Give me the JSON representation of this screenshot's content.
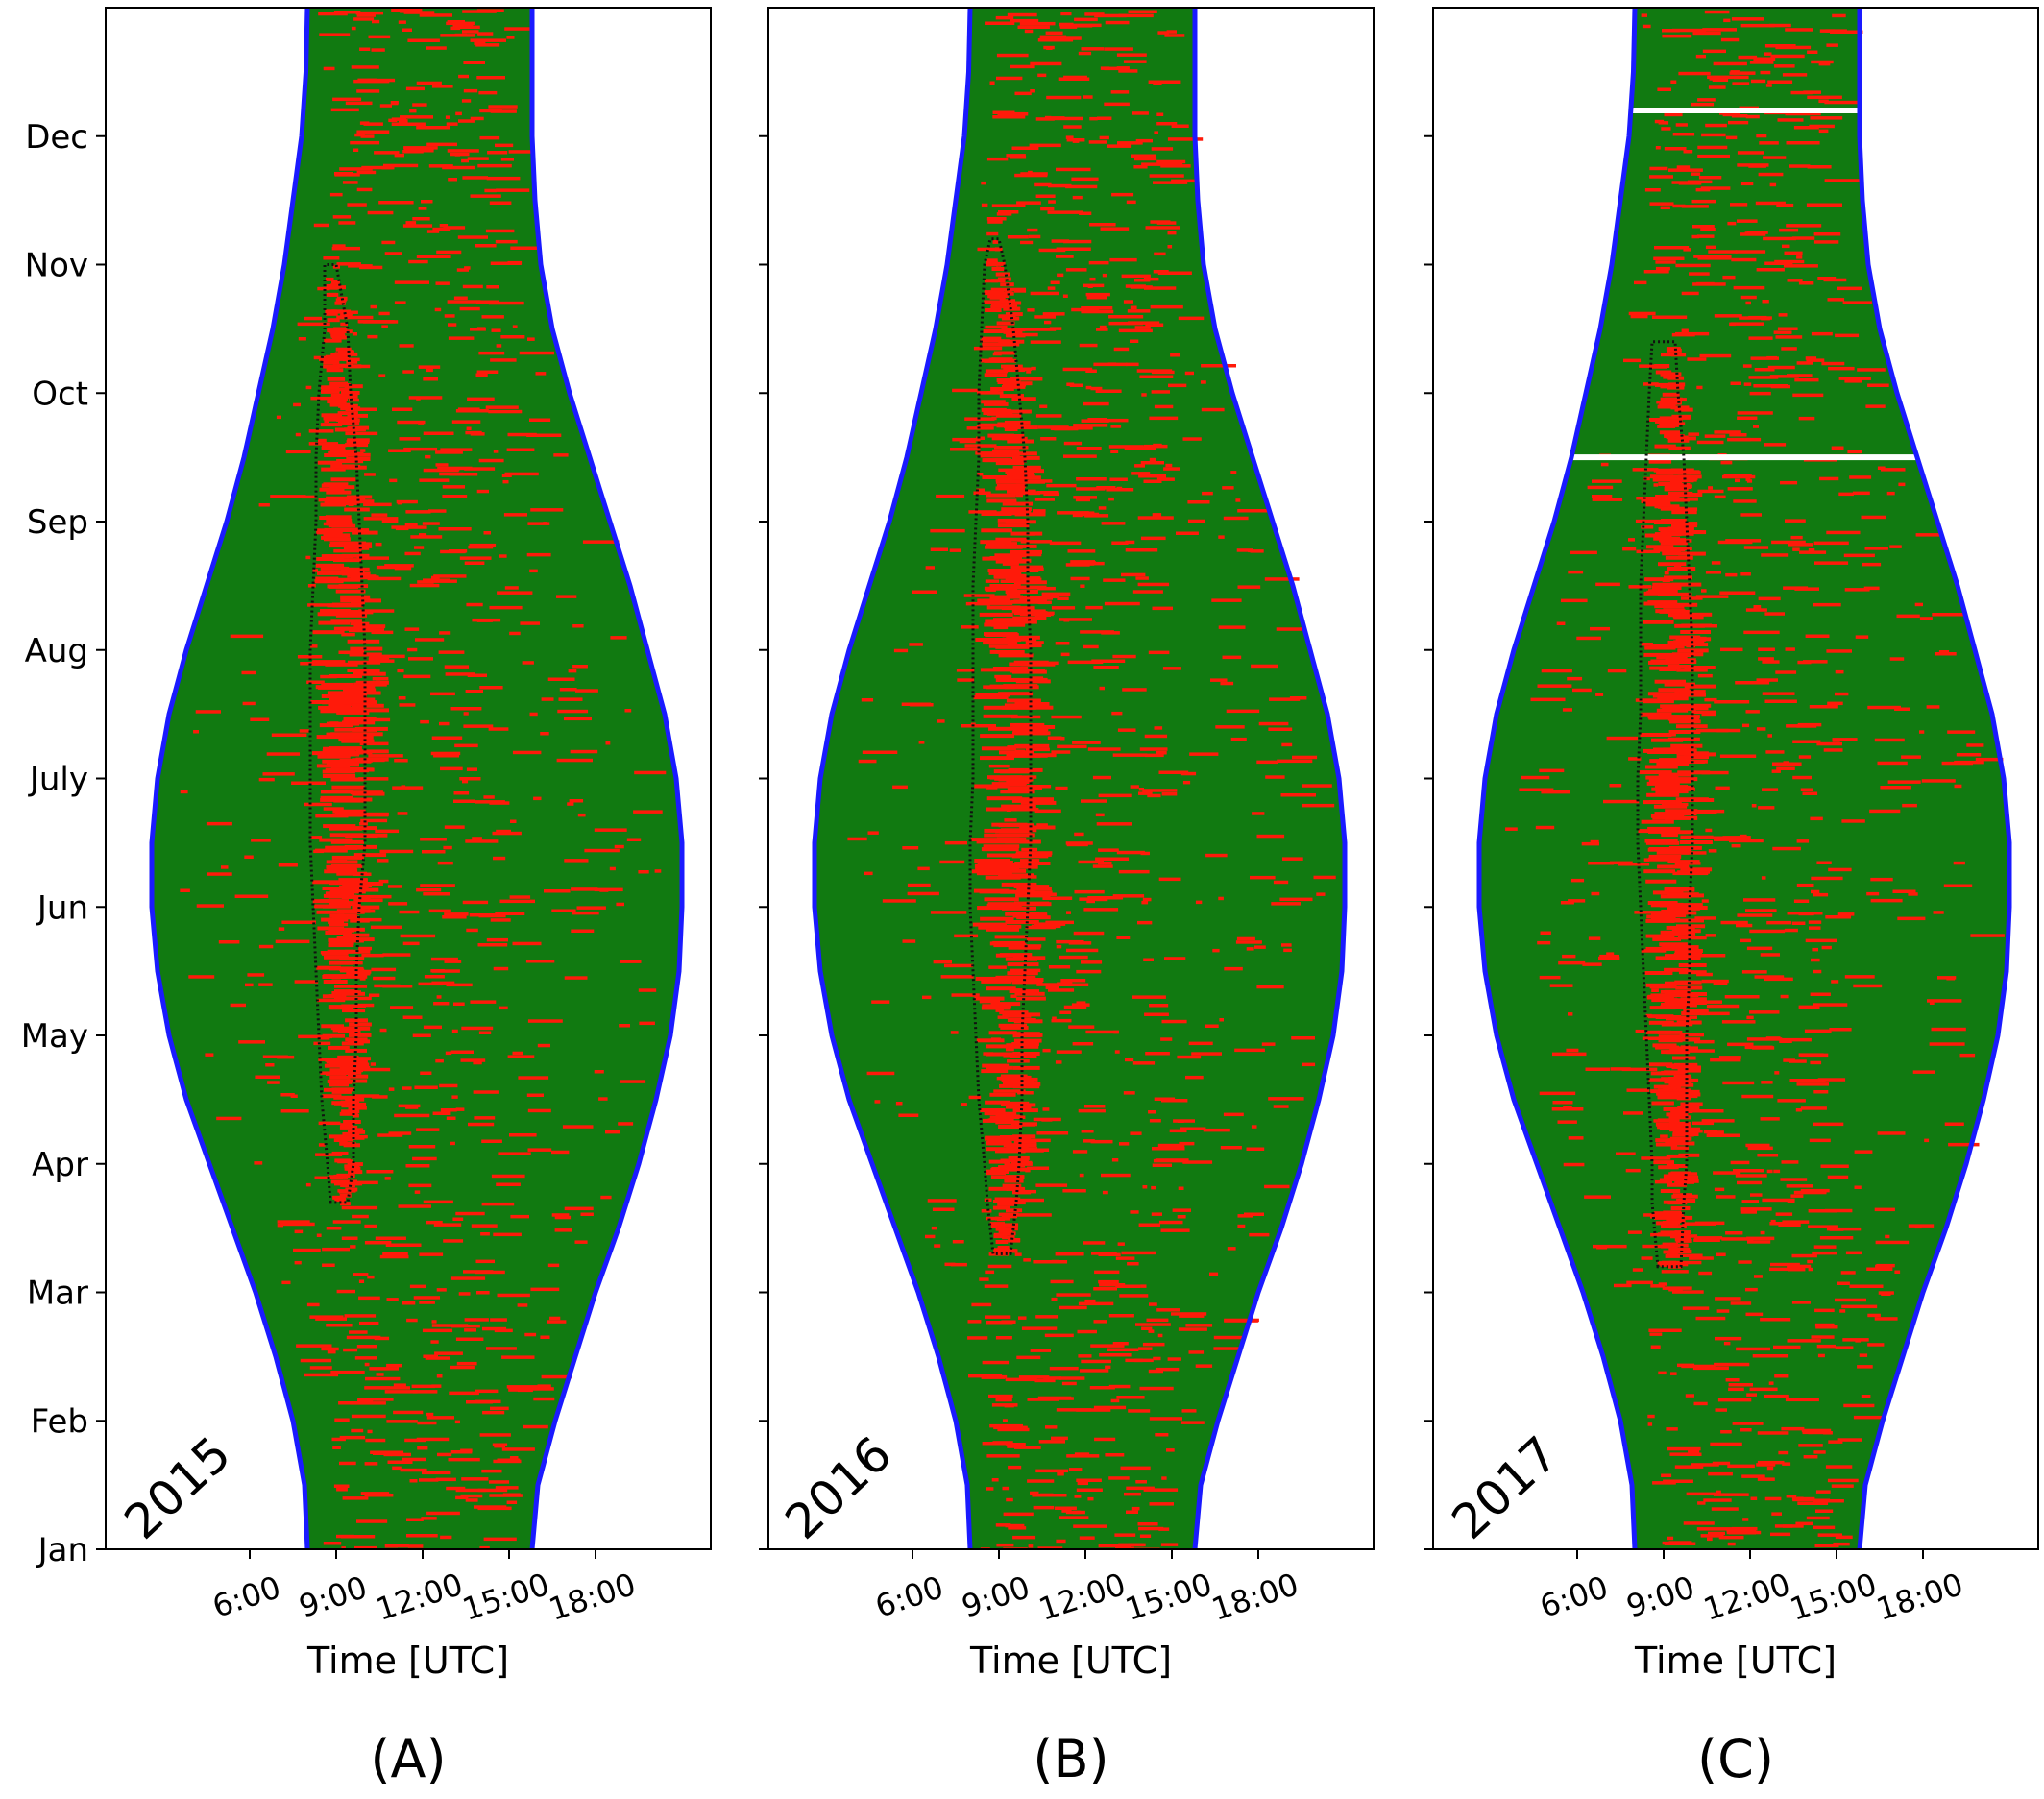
{
  "colors": {
    "sky_fill": "#117a11",
    "red_marks": "#ff1a0a",
    "daylight_curve": "#1a1aff",
    "contour": "#111111",
    "frame": "#000000",
    "background": "#ffffff"
  },
  "chart_data": [
    {
      "type": "scatter",
      "panel_label": "(A)",
      "year_label": "2015",
      "xlabel": "Time [UTC]",
      "ylabel": "",
      "x_ticks": [
        "6:00",
        "9:00",
        "12:00",
        "15:00",
        "18:00"
      ],
      "x_tick_values": [
        6,
        9,
        12,
        15,
        18
      ],
      "y_ticks": [
        "Jan",
        "Feb",
        "Mar",
        "Apr",
        "May",
        "Jun",
        "July",
        "Aug",
        "Sep",
        "Oct",
        "Nov",
        "Dec"
      ],
      "xlim": [
        1.0,
        22.0
      ],
      "ylim": [
        0.0,
        12.0
      ],
      "daylight_bounds": {
        "month": [
          0.0,
          0.5,
          1.0,
          1.5,
          2.0,
          2.5,
          3.0,
          3.5,
          4.0,
          4.5,
          5.0,
          5.5,
          6.0,
          6.5,
          7.0,
          7.5,
          8.0,
          8.5,
          9.0,
          9.5,
          10.0,
          10.5,
          11.0,
          11.5,
          12.0
        ],
        "start_hour": [
          8.0,
          7.9,
          7.5,
          6.9,
          6.2,
          5.4,
          4.6,
          3.8,
          3.2,
          2.8,
          2.6,
          2.6,
          2.8,
          3.2,
          3.8,
          4.5,
          5.2,
          5.8,
          6.3,
          6.8,
          7.2,
          7.5,
          7.8,
          7.95,
          8.0
        ],
        "end_hour": [
          15.8,
          16.0,
          16.6,
          17.3,
          18.0,
          18.8,
          19.5,
          20.1,
          20.6,
          20.9,
          21.0,
          21.0,
          20.8,
          20.4,
          19.8,
          19.2,
          18.5,
          17.8,
          17.1,
          16.5,
          16.1,
          15.9,
          15.8,
          15.8,
          15.8
        ]
      },
      "contour_region": {
        "month": [
          2.7,
          3.0,
          3.5,
          4.0,
          4.5,
          5.0,
          5.5,
          6.0,
          6.5,
          7.0,
          7.5,
          8.0,
          8.5,
          9.0,
          9.5,
          10.0
        ],
        "start_hour": [
          8.8,
          8.7,
          8.5,
          8.4,
          8.3,
          8.2,
          8.1,
          8.1,
          8.1,
          8.1,
          8.2,
          8.3,
          8.3,
          8.4,
          8.6,
          8.6
        ],
        "end_hour": [
          9.4,
          9.6,
          9.6,
          9.7,
          9.7,
          9.8,
          10.0,
          10.0,
          10.0,
          10.0,
          9.9,
          9.8,
          9.7,
          9.5,
          9.4,
          9.0
        ]
      }
    },
    {
      "type": "scatter",
      "panel_label": "(B)",
      "year_label": "2016",
      "xlabel": "Time [UTC]",
      "ylabel": "",
      "x_ticks": [
        "6:00",
        "9:00",
        "12:00",
        "15:00",
        "18:00"
      ],
      "x_tick_values": [
        6,
        9,
        12,
        15,
        18
      ],
      "y_ticks": [
        "Jan",
        "Feb",
        "Mar",
        "Apr",
        "May",
        "Jun",
        "July",
        "Aug",
        "Sep",
        "Oct",
        "Nov",
        "Dec"
      ],
      "xlim": [
        1.0,
        22.0
      ],
      "ylim": [
        0.0,
        12.0
      ],
      "daylight_bounds": {
        "month": [
          0.0,
          0.5,
          1.0,
          1.5,
          2.0,
          2.5,
          3.0,
          3.5,
          4.0,
          4.5,
          5.0,
          5.5,
          6.0,
          6.5,
          7.0,
          7.5,
          8.0,
          8.5,
          9.0,
          9.5,
          10.0,
          10.5,
          11.0,
          11.5,
          12.0
        ],
        "start_hour": [
          8.0,
          7.9,
          7.5,
          6.9,
          6.2,
          5.4,
          4.6,
          3.8,
          3.2,
          2.8,
          2.6,
          2.6,
          2.8,
          3.2,
          3.8,
          4.5,
          5.2,
          5.8,
          6.3,
          6.8,
          7.2,
          7.5,
          7.8,
          7.95,
          8.0
        ],
        "end_hour": [
          15.8,
          16.0,
          16.6,
          17.3,
          18.0,
          18.8,
          19.5,
          20.1,
          20.6,
          20.9,
          21.0,
          21.0,
          20.8,
          20.4,
          19.8,
          19.2,
          18.5,
          17.8,
          17.1,
          16.5,
          16.1,
          15.9,
          15.8,
          15.8,
          15.8
        ]
      },
      "contour_region": {
        "month": [
          2.3,
          2.7,
          3.0,
          3.5,
          4.0,
          4.5,
          5.0,
          5.5,
          6.0,
          6.5,
          7.0,
          7.5,
          8.0,
          8.5,
          9.0,
          9.5,
          10.0,
          10.2
        ],
        "start_hour": [
          8.8,
          8.6,
          8.5,
          8.3,
          8.2,
          8.1,
          8.0,
          8.0,
          8.1,
          8.1,
          8.1,
          8.1,
          8.2,
          8.3,
          8.3,
          8.4,
          8.5,
          8.7
        ],
        "end_hour": [
          9.4,
          9.6,
          9.7,
          9.8,
          9.8,
          9.9,
          10.0,
          10.1,
          10.1,
          10.1,
          10.1,
          10.0,
          10.0,
          9.9,
          9.7,
          9.5,
          9.2,
          9.0
        ]
      }
    },
    {
      "type": "scatter",
      "panel_label": "(C)",
      "year_label": "2017",
      "xlabel": "Time [UTC]",
      "ylabel": "",
      "x_ticks": [
        "6:00",
        "9:00",
        "12:00",
        "15:00",
        "18:00"
      ],
      "x_tick_values": [
        6,
        9,
        12,
        15,
        18
      ],
      "y_ticks": [
        "Jan",
        "Feb",
        "Mar",
        "Apr",
        "May",
        "Jun",
        "July",
        "Aug",
        "Sep",
        "Oct",
        "Nov",
        "Dec"
      ],
      "xlim": [
        1.0,
        22.0
      ],
      "ylim": [
        0.0,
        12.0
      ],
      "daylight_bounds": {
        "month": [
          0.0,
          0.5,
          1.0,
          1.5,
          2.0,
          2.5,
          3.0,
          3.5,
          4.0,
          4.5,
          5.0,
          5.5,
          6.0,
          6.5,
          7.0,
          7.5,
          8.0,
          8.5,
          9.0,
          9.5,
          10.0,
          10.5,
          11.0,
          11.5,
          12.0
        ],
        "start_hour": [
          8.0,
          7.9,
          7.5,
          6.9,
          6.2,
          5.4,
          4.6,
          3.8,
          3.2,
          2.8,
          2.6,
          2.6,
          2.8,
          3.2,
          3.8,
          4.5,
          5.2,
          5.8,
          6.3,
          6.8,
          7.2,
          7.5,
          7.8,
          7.95,
          8.0
        ],
        "end_hour": [
          15.8,
          16.0,
          16.6,
          17.3,
          18.0,
          18.8,
          19.5,
          20.1,
          20.6,
          20.9,
          21.0,
          21.0,
          20.8,
          20.4,
          19.8,
          19.2,
          18.5,
          17.8,
          17.1,
          16.5,
          16.1,
          15.9,
          15.8,
          15.8,
          15.8
        ]
      },
      "contour_region": {
        "month": [
          2.2,
          2.7,
          3.0,
          3.5,
          4.0,
          4.5,
          5.0,
          5.5,
          6.0,
          6.5,
          7.0,
          7.5,
          8.0,
          8.5,
          9.0,
          9.4
        ],
        "start_hour": [
          8.8,
          8.6,
          8.6,
          8.5,
          8.4,
          8.3,
          8.2,
          8.1,
          8.1,
          8.2,
          8.2,
          8.2,
          8.3,
          8.4,
          8.5,
          8.6
        ],
        "end_hour": [
          9.6,
          9.7,
          9.8,
          9.8,
          9.8,
          9.9,
          9.9,
          10.0,
          10.0,
          10.0,
          10.0,
          9.9,
          9.8,
          9.7,
          9.5,
          9.4
        ]
      },
      "data_gaps_month": [
        8.5,
        11.2
      ]
    }
  ]
}
